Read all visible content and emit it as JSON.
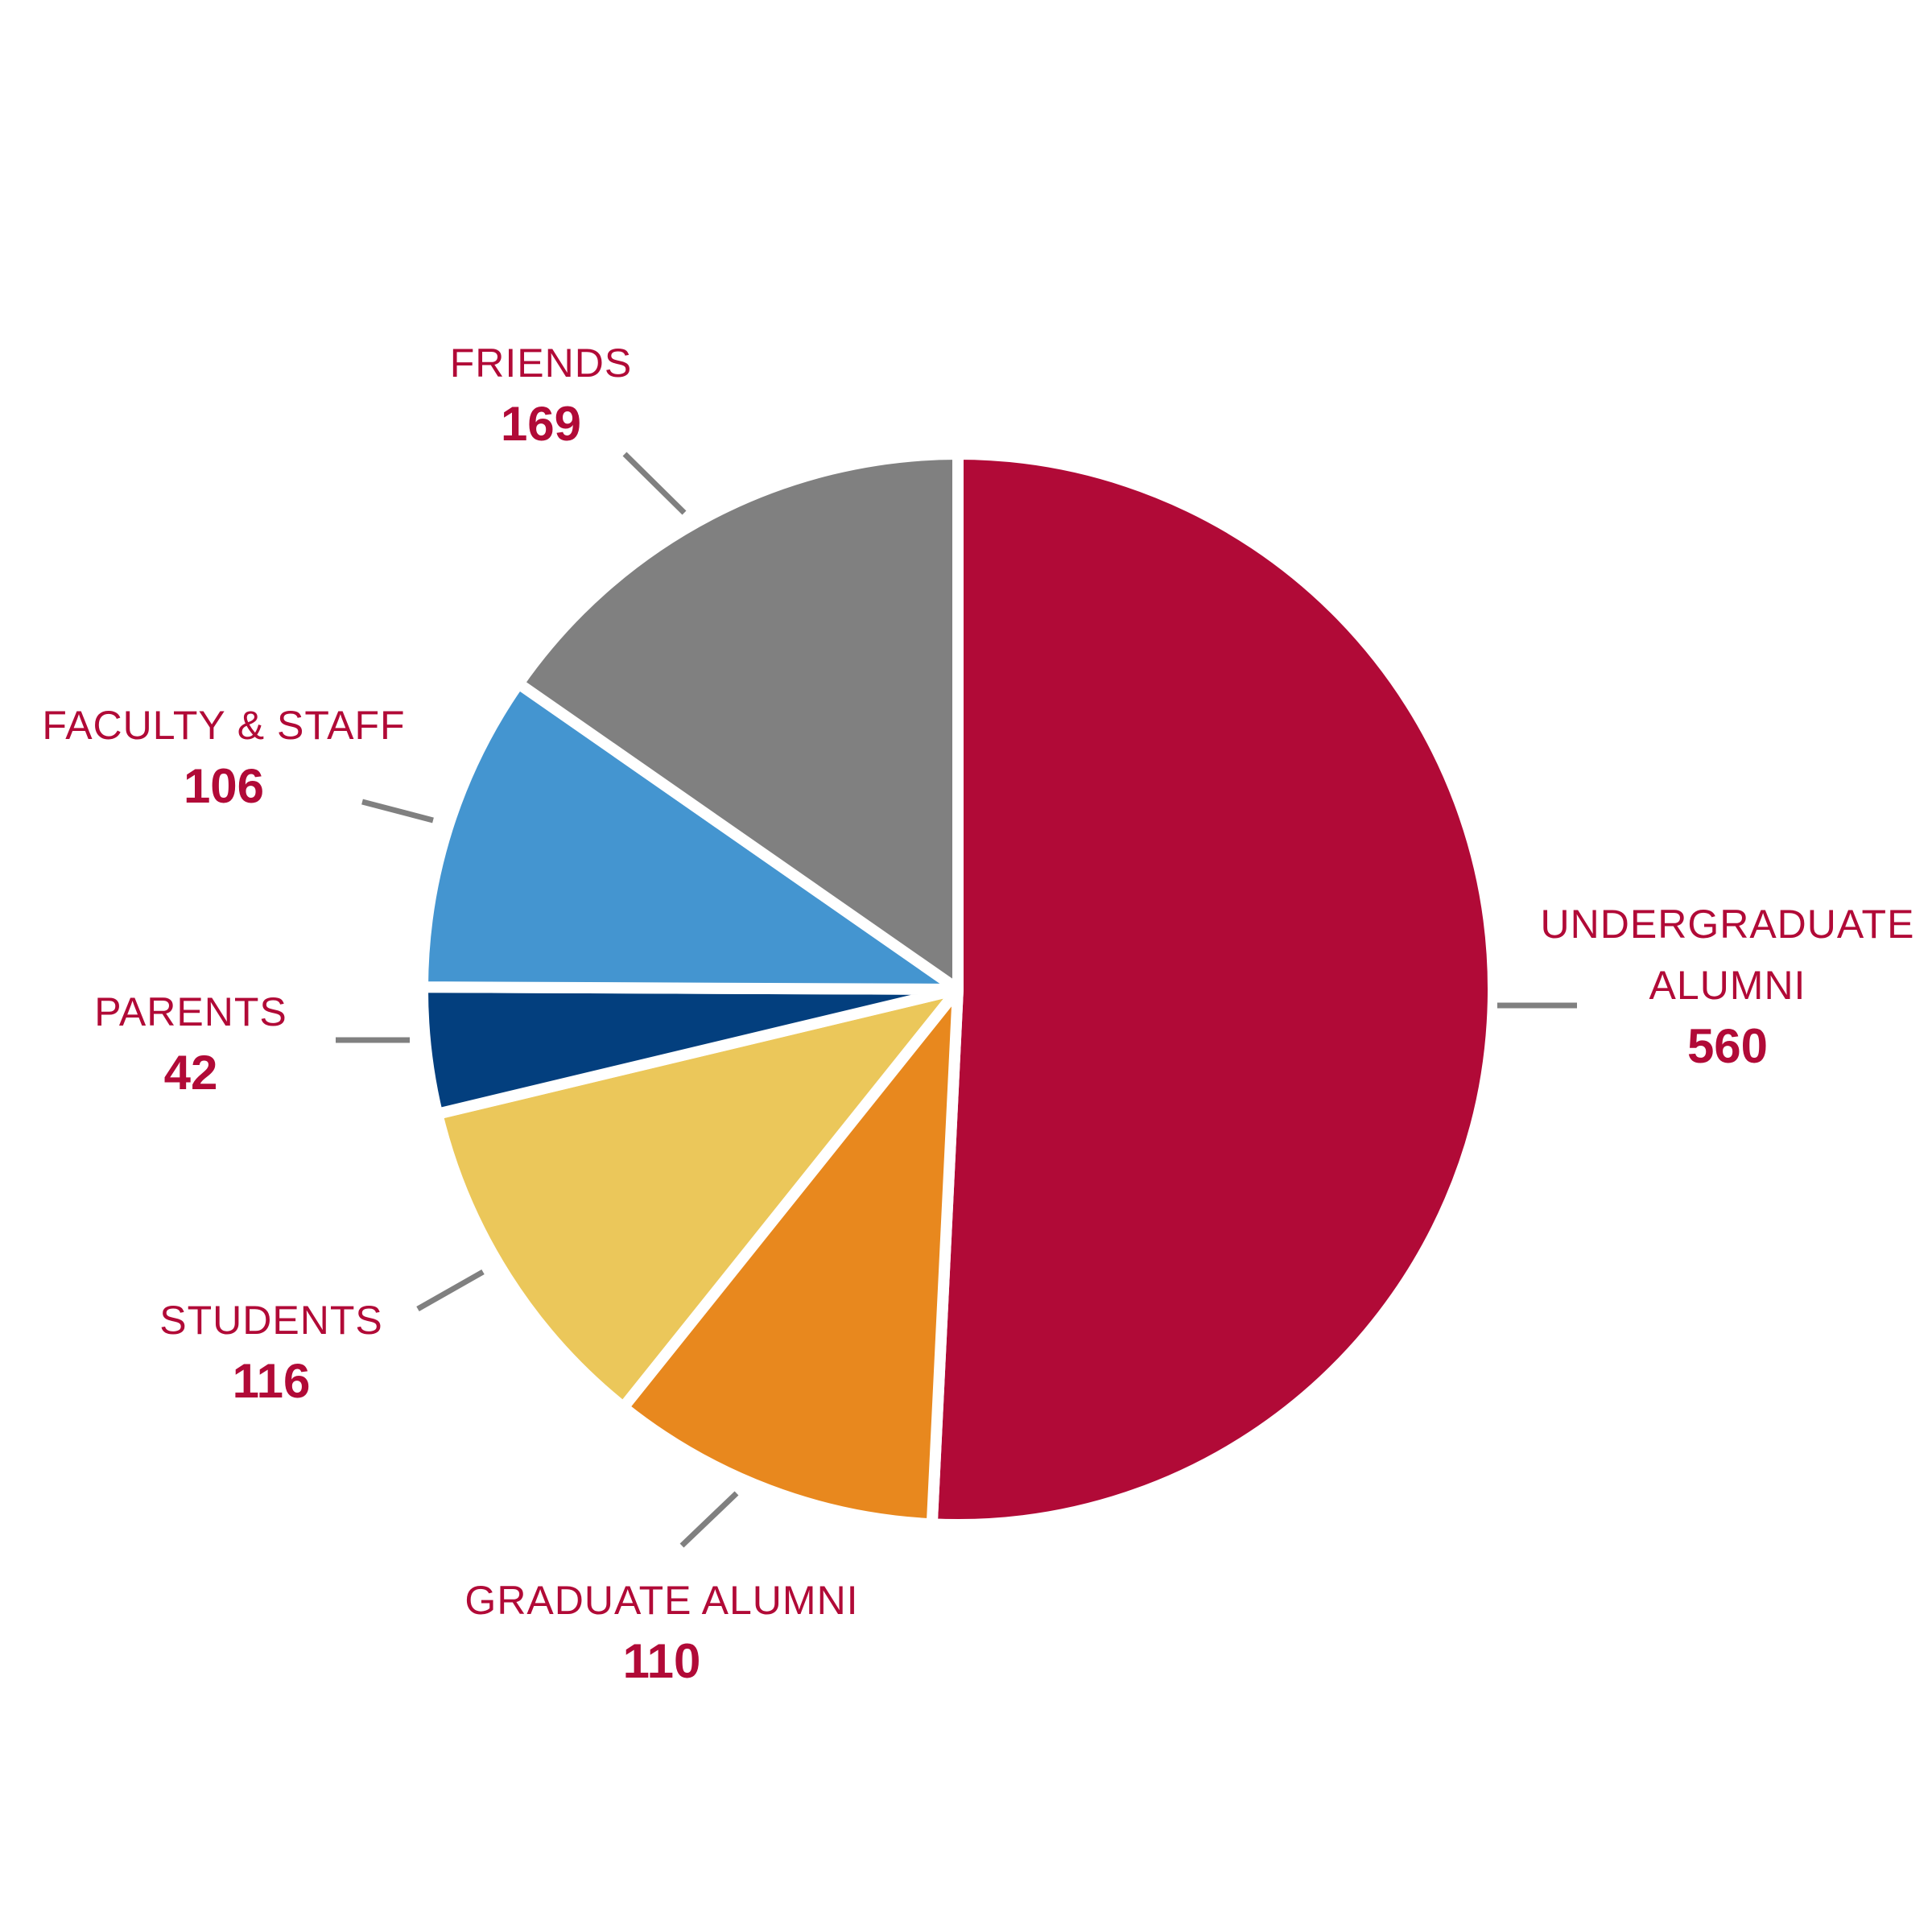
{
  "chart_data": {
    "type": "pie",
    "categories": [
      "UNDERGRADUATE ALUMNI",
      "GRADUATE ALUMNI",
      "STUDENTS",
      "PARENTS",
      "FACULTY & STAFF",
      "FRIENDS"
    ],
    "values": [
      560,
      110,
      116,
      42,
      106,
      169
    ],
    "colors": [
      "#b10a37",
      "#e8881e",
      "#ebc75a",
      "#033f7e",
      "#4495d0",
      "#808080"
    ]
  }
}
